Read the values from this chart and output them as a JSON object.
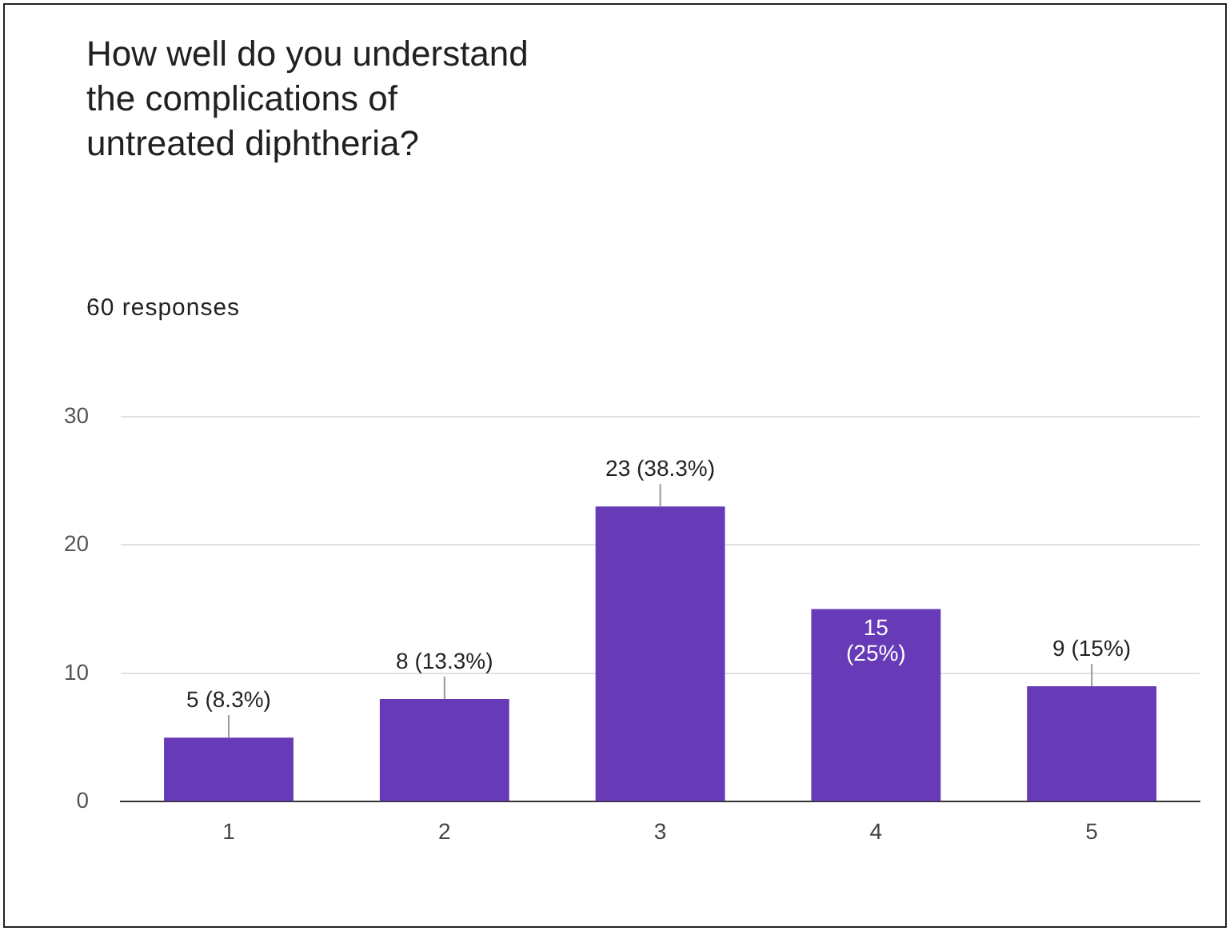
{
  "chart_data": {
    "type": "bar",
    "title": "How well do you understand the complications of untreated diphtheria?",
    "subtitle": "60 responses",
    "categories": [
      "1",
      "2",
      "3",
      "4",
      "5"
    ],
    "values": [
      5,
      8,
      23,
      15,
      9
    ],
    "value_labels": [
      "5 (8.3%)",
      "8 (13.3%)",
      "23 (38.3%)",
      "15 (25%)",
      "9 (15%)"
    ],
    "color": "#673ab7",
    "ylim": [
      0,
      30
    ],
    "yticks": [
      0,
      10,
      20,
      30
    ],
    "grid": "y",
    "legend": false
  }
}
